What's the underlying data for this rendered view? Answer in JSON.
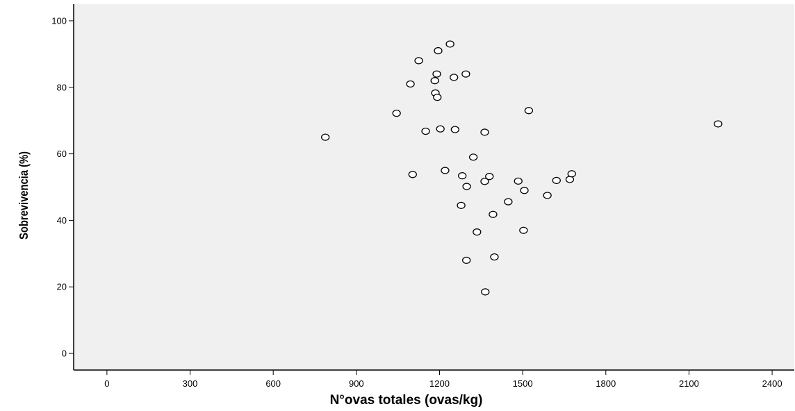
{
  "chart_data": {
    "type": "scatter",
    "title": "",
    "xlabel": "N°ovas totales (ovas/kg)",
    "ylabel": "Sobrevivencia (%)",
    "xlim": [
      -120,
      2480
    ],
    "ylim": [
      -5,
      105
    ],
    "x_ticks": [
      0,
      300,
      600,
      900,
      1200,
      1500,
      1800,
      2100,
      2400
    ],
    "y_ticks": [
      0,
      20,
      40,
      60,
      80,
      100
    ],
    "grid": false,
    "marker": "open-circle",
    "colors": {
      "plot_background": "#f0f0f0",
      "marker_fill": "#ffffff",
      "marker_edge": "#000000"
    },
    "points": [
      {
        "x": 788,
        "y": 65
      },
      {
        "x": 1045,
        "y": 72.2
      },
      {
        "x": 1095,
        "y": 81
      },
      {
        "x": 1103,
        "y": 53.8
      },
      {
        "x": 1125,
        "y": 88
      },
      {
        "x": 1150,
        "y": 66.8
      },
      {
        "x": 1183,
        "y": 82
      },
      {
        "x": 1185,
        "y": 78.3
      },
      {
        "x": 1190,
        "y": 84
      },
      {
        "x": 1192,
        "y": 77
      },
      {
        "x": 1195,
        "y": 91
      },
      {
        "x": 1203,
        "y": 67.5
      },
      {
        "x": 1220,
        "y": 55
      },
      {
        "x": 1238,
        "y": 93
      },
      {
        "x": 1252,
        "y": 83
      },
      {
        "x": 1256,
        "y": 67.3
      },
      {
        "x": 1278,
        "y": 44.5
      },
      {
        "x": 1282,
        "y": 53.4
      },
      {
        "x": 1295,
        "y": 84
      },
      {
        "x": 1297,
        "y": 28
      },
      {
        "x": 1298,
        "y": 50.2
      },
      {
        "x": 1322,
        "y": 59
      },
      {
        "x": 1335,
        "y": 36.5
      },
      {
        "x": 1363,
        "y": 66.5
      },
      {
        "x": 1363,
        "y": 51.7
      },
      {
        "x": 1365,
        "y": 18.5
      },
      {
        "x": 1380,
        "y": 53.2
      },
      {
        "x": 1393,
        "y": 41.8
      },
      {
        "x": 1398,
        "y": 29
      },
      {
        "x": 1448,
        "y": 45.6
      },
      {
        "x": 1484,
        "y": 51.8
      },
      {
        "x": 1503,
        "y": 37
      },
      {
        "x": 1506,
        "y": 49
      },
      {
        "x": 1522,
        "y": 73
      },
      {
        "x": 1589,
        "y": 47.5
      },
      {
        "x": 1622,
        "y": 52
      },
      {
        "x": 1670,
        "y": 52.3
      },
      {
        "x": 1677,
        "y": 54
      },
      {
        "x": 2205,
        "y": 69
      }
    ]
  }
}
